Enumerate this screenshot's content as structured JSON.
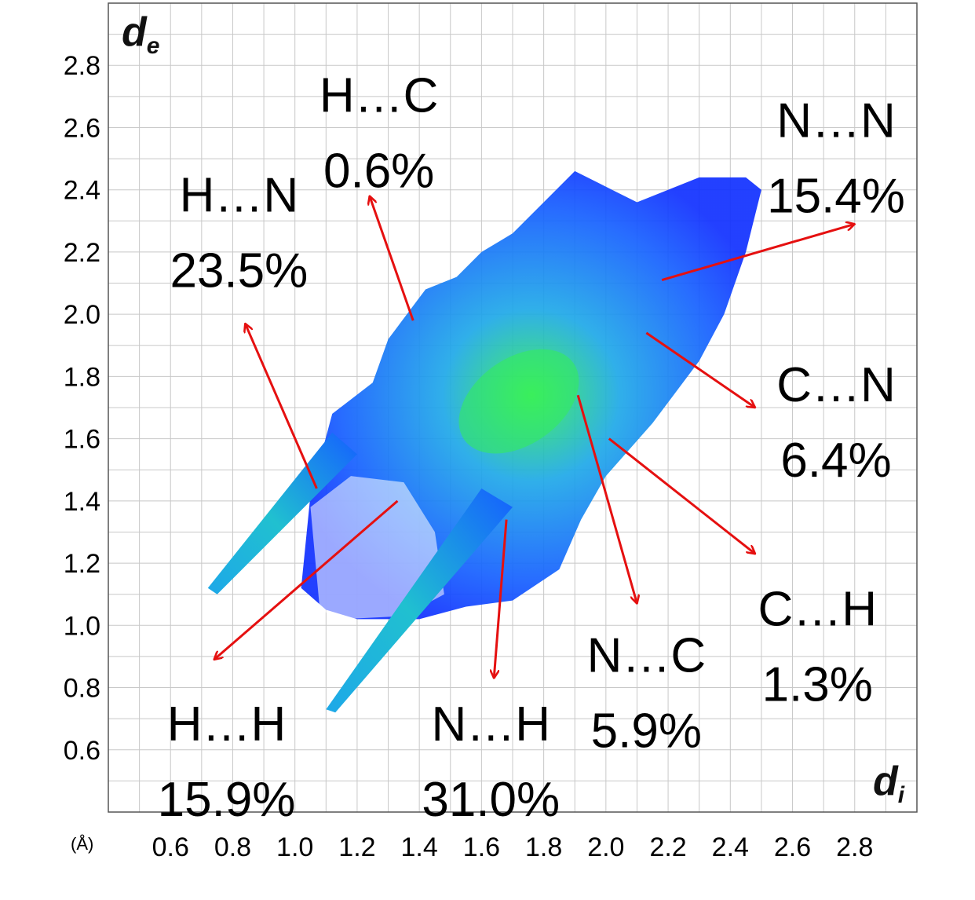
{
  "chart_data": {
    "type": "heatmap",
    "title": "",
    "xlabel": {
      "main": "d",
      "sub": "i"
    },
    "ylabel": {
      "main": "d",
      "sub": "e"
    },
    "unit_label": "(Å)",
    "xlim": [
      0.4,
      3.0
    ],
    "ylim": [
      0.4,
      3.0
    ],
    "x_ticks": [
      "0.6",
      "0.8",
      "1.0",
      "1.2",
      "1.4",
      "1.6",
      "1.8",
      "2.0",
      "2.2",
      "2.4",
      "2.6",
      "2.8"
    ],
    "y_ticks": [
      "0.6",
      "0.8",
      "1.0",
      "1.2",
      "1.4",
      "1.6",
      "1.8",
      "2.0",
      "2.2",
      "2.4",
      "2.6",
      "2.8"
    ],
    "grid": true,
    "colors": {
      "low": "#1030ff",
      "mid": "#1ea8e8",
      "high": "#33ee55",
      "arrow": "#e51010"
    },
    "annotations": [
      {
        "pair": "H…C",
        "percent": "0.6%",
        "text_at": [
          1.27,
          2.65
        ],
        "arrow_from": [
          1.38,
          1.98
        ],
        "arrow_to": [
          1.24,
          2.38
        ]
      },
      {
        "pair": "H…N",
        "percent": "23.5%",
        "text_at": [
          0.82,
          2.33
        ],
        "arrow_from": [
          1.07,
          1.44
        ],
        "arrow_to": [
          0.84,
          1.97
        ]
      },
      {
        "pair": "N…N",
        "percent": "15.4%",
        "text_at": [
          2.74,
          2.57
        ],
        "arrow_from": [
          2.18,
          2.11
        ],
        "arrow_to": [
          2.8,
          2.29
        ]
      },
      {
        "pair": "C…N",
        "percent": "6.4%",
        "text_at": [
          2.74,
          1.72
        ],
        "arrow_from": [
          2.13,
          1.94
        ],
        "arrow_to": [
          2.48,
          1.7
        ]
      },
      {
        "pair": "C…H",
        "percent": "1.3%",
        "text_at": [
          2.68,
          1.0
        ],
        "arrow_from": [
          2.01,
          1.6
        ],
        "arrow_to": [
          2.48,
          1.23
        ]
      },
      {
        "pair": "N…C",
        "percent": "5.9%",
        "text_at": [
          2.13,
          0.85
        ],
        "arrow_from": [
          1.91,
          1.74
        ],
        "arrow_to": [
          2.1,
          1.07
        ]
      },
      {
        "pair": "N…H",
        "percent": "31.0%",
        "text_at": [
          1.63,
          0.63
        ],
        "arrow_from": [
          1.68,
          1.34
        ],
        "arrow_to": [
          1.64,
          0.83
        ]
      },
      {
        "pair": "H…H",
        "percent": "15.9%",
        "text_at": [
          0.78,
          0.63
        ],
        "arrow_from": [
          1.33,
          1.4
        ],
        "arrow_to": [
          0.74,
          0.89
        ]
      }
    ]
  }
}
